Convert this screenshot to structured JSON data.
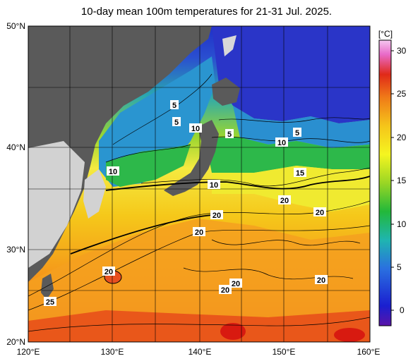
{
  "title": "10-day mean 100m temperatures for 21-31 Jul. 2025.",
  "lat_ticks": [
    "50°N",
    "40°N",
    "30°N",
    "20°N"
  ],
  "lon_ticks": [
    "120°E",
    "130°E",
    "140°E",
    "150°E",
    "160°E"
  ],
  "colorbar": {
    "unit": "[°C]",
    "ticks": [
      "30",
      "25",
      "20",
      "15",
      "10",
      "5",
      "0"
    ],
    "colors": [
      "#6a1fa6",
      "#1a2ccc",
      "#1f6fe0",
      "#1fb0b0",
      "#2db84a",
      "#8fd62a",
      "#f2f21a",
      "#f5c21a",
      "#f08a1a",
      "#e8401a",
      "#f5a0d8"
    ]
  },
  "colors": {
    "land": "#5a5a5a",
    "land_light": "#d2d2d2",
    "cold": "#2a3fcc",
    "warm": "#f5c21a",
    "hot": "#e8401a"
  },
  "isotherm_labels": [
    "5",
    "5",
    "10",
    "5",
    "5",
    "10",
    "10",
    "10",
    "15",
    "20",
    "20",
    "20",
    "20",
    "20",
    "20",
    "20",
    "25",
    "20"
  ]
}
